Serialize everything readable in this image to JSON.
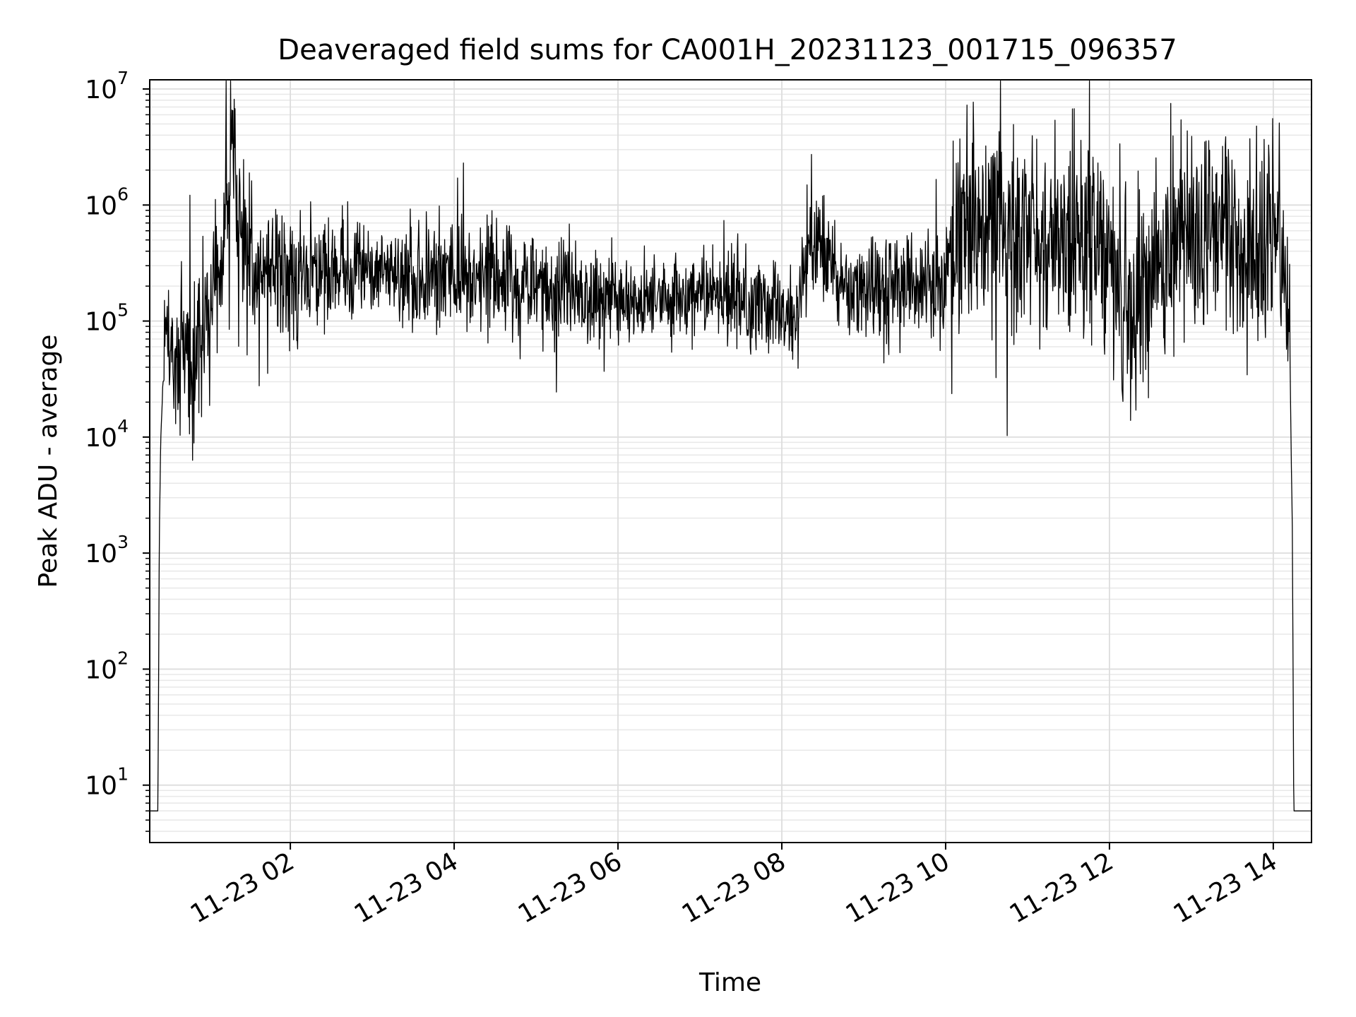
{
  "chart_data": {
    "type": "line",
    "title": "Deaveraged field sums for CA001H_20231123_001715_096357",
    "xlabel": "Time",
    "ylabel": "Peak ADU - average",
    "xlim": [
      "2023-11-23 00:17",
      "2023-11-23 14:28"
    ],
    "ylim": [
      3.2,
      12000000
    ],
    "y_scale": "log",
    "grid": true,
    "line_color": "#000000",
    "x_ticks": [
      {
        "value": "2023-11-23 02:00",
        "label": "11-23 02"
      },
      {
        "value": "2023-11-23 04:00",
        "label": "11-23 04"
      },
      {
        "value": "2023-11-23 06:00",
        "label": "11-23 06"
      },
      {
        "value": "2023-11-23 08:00",
        "label": "11-23 08"
      },
      {
        "value": "2023-11-23 10:00",
        "label": "11-23 10"
      },
      {
        "value": "2023-11-23 12:00",
        "label": "11-23 12"
      },
      {
        "value": "2023-11-23 14:00",
        "label": "11-23 14"
      }
    ],
    "y_ticks": [
      {
        "value": 10,
        "base": "10",
        "exp": "1"
      },
      {
        "value": 100,
        "base": "10",
        "exp": "2"
      },
      {
        "value": 1000,
        "base": "10",
        "exp": "3"
      },
      {
        "value": 10000,
        "base": "10",
        "exp": "4"
      },
      {
        "value": 100000,
        "base": "10",
        "exp": "5"
      },
      {
        "value": 1000000,
        "base": "10",
        "exp": "6"
      },
      {
        "value": 10000000,
        "base": "10",
        "exp": "7"
      }
    ],
    "series": [
      {
        "x": [
          "2023-11-23 00:17",
          "2023-11-23 00:22",
          "2023-11-23 00:23",
          "2023-11-23 00:24",
          "2023-11-23 00:25",
          "2023-11-23 00:26",
          "2023-11-23 00:28",
          "2023-11-23 00:30",
          "2023-11-23 00:40",
          "2023-11-23 00:50",
          "2023-11-23 01:00",
          "2023-11-23 01:10",
          "2023-11-23 01:13",
          "2023-11-23 01:15",
          "2023-11-23 01:17",
          "2023-11-23 01:20",
          "2023-11-23 01:22",
          "2023-11-23 01:30",
          "2023-11-23 01:40",
          "2023-11-23 01:50",
          "2023-11-23 02:00",
          "2023-11-23 02:30",
          "2023-11-23 03:00",
          "2023-11-23 03:30",
          "2023-11-23 03:52",
          "2023-11-23 04:00",
          "2023-11-23 04:25",
          "2023-11-23 04:30",
          "2023-11-23 05:00",
          "2023-11-23 05:30",
          "2023-11-23 06:00",
          "2023-11-23 06:30",
          "2023-11-23 07:00",
          "2023-11-23 07:30",
          "2023-11-23 07:50",
          "2023-11-23 08:12",
          "2023-11-23 08:20",
          "2023-11-23 08:45",
          "2023-11-23 09:10",
          "2023-11-23 09:40",
          "2023-11-23 10:00",
          "2023-11-23 10:10",
          "2023-11-23 10:30",
          "2023-11-23 11:00",
          "2023-11-23 11:30",
          "2023-11-23 11:45",
          "2023-11-23 12:05",
          "2023-11-23 12:15",
          "2023-11-23 12:30",
          "2023-11-23 12:40",
          "2023-11-23 13:00",
          "2023-11-23 13:20",
          "2023-11-23 13:35",
          "2023-11-23 13:45",
          "2023-11-23 13:55",
          "2023-11-23 14:00",
          "2023-11-23 14:05",
          "2023-11-23 14:10",
          "2023-11-23 14:12",
          "2023-11-23 14:13",
          "2023-11-23 14:14",
          "2023-11-23 14:15",
          "2023-11-23 14:16",
          "2023-11-23 14:17",
          "2023-11-23 14:20",
          "2023-11-23 14:28"
        ],
        "y": [
          6,
          6,
          6,
          1300,
          9000,
          18000,
          55000,
          60000,
          50000,
          55000,
          110000,
          180000,
          2200000,
          800000,
          5000000,
          1500000,
          700000,
          400000,
          250000,
          300000,
          220000,
          280000,
          300000,
          220000,
          260000,
          230000,
          250000,
          200000,
          200000,
          180000,
          160000,
          150000,
          170000,
          160000,
          130000,
          110000,
          500000,
          160000,
          180000,
          200000,
          220000,
          600000,
          800000,
          500000,
          600000,
          500000,
          250000,
          90000,
          300000,
          400000,
          700000,
          600000,
          400000,
          500000,
          450000,
          600000,
          400000,
          200000,
          90000,
          9000,
          1500,
          6,
          6,
          6,
          6,
          6
        ],
        "noise_amplitude_decades": [
          0,
          0,
          0,
          0,
          0,
          0,
          0.35,
          0.35,
          0.35,
          0.35,
          0.35,
          0.3,
          0.35,
          0.4,
          0.4,
          0.4,
          0.4,
          0.35,
          0.3,
          0.3,
          0.25,
          0.25,
          0.25,
          0.25,
          0.25,
          0.25,
          0.25,
          0.25,
          0.22,
          0.22,
          0.2,
          0.2,
          0.2,
          0.2,
          0.2,
          0.2,
          0.3,
          0.22,
          0.25,
          0.25,
          0.3,
          0.45,
          0.45,
          0.45,
          0.45,
          0.45,
          0.4,
          0.45,
          0.45,
          0.45,
          0.45,
          0.45,
          0.45,
          0.45,
          0.45,
          0.45,
          0.4,
          0.3,
          0.3,
          0,
          0,
          0,
          0,
          0,
          0,
          0
        ]
      }
    ]
  }
}
